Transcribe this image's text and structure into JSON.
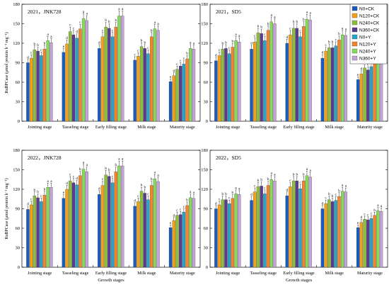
{
  "colors": [
    "#1a5bbf",
    "#f4a11a",
    "#8dbd3c",
    "#5a3c8c",
    "#2aa3c9",
    "#f4832a",
    "#86d95a",
    "#c4a3d8"
  ],
  "chart_data": [
    {
      "type": "bar",
      "title": "2021，JNK728",
      "ylabel": "RuBPCase (μmol protein h⁻¹ mg⁻¹)",
      "xlabel": "",
      "ylim": [
        0,
        180
      ],
      "yticks": [
        0,
        30,
        60,
        90,
        120,
        150,
        180
      ],
      "categories": [
        "Jointing stage",
        "Tasseling stage",
        "Early filling stage",
        "Milk stage",
        "Maturity stage"
      ],
      "series": [
        {
          "name": "N0+CK",
          "values": [
            90,
            106,
            112,
            94,
            61
          ],
          "labels": [
            "d",
            "e",
            "d",
            "c",
            "e"
          ]
        },
        {
          "name": "N120+CK",
          "values": [
            97,
            119,
            130,
            100,
            70
          ],
          "labels": [
            "c",
            "d",
            "c",
            "c",
            "d"
          ]
        },
        {
          "name": "N240+CK",
          "values": [
            110,
            138,
            145,
            115,
            80
          ],
          "labels": [
            "b",
            "c",
            "b",
            "b",
            "c"
          ]
        },
        {
          "name": "N360+CK",
          "values": [
            108,
            133,
            143,
            112,
            85
          ],
          "labels": [
            "b",
            "c",
            "b",
            "b",
            "c"
          ]
        },
        {
          "name": "N0+Y",
          "values": [
            101,
            128,
            130,
            104,
            88
          ],
          "labels": [
            "c",
            "d",
            "c",
            "c",
            "c"
          ]
        },
        {
          "name": "N120+Y",
          "values": [
            111,
            142,
            145,
            130,
            96
          ],
          "labels": [
            "b",
            "c",
            "b",
            "b",
            "b"
          ]
        },
        {
          "name": "N240+Y",
          "values": [
            124,
            158,
            162,
            142,
            112
          ],
          "labels": [
            "a",
            "a",
            "a",
            "a",
            "a"
          ]
        },
        {
          "name": "N360+Y",
          "values": [
            121,
            155,
            162,
            140,
            111
          ],
          "labels": [
            "a",
            "a",
            "a",
            "a",
            "a"
          ]
        }
      ]
    },
    {
      "type": "bar",
      "title": "2021，SD5",
      "ylabel": "",
      "xlabel": "",
      "ylim": [
        0,
        180
      ],
      "yticks": [
        0,
        30,
        60,
        90,
        120,
        150,
        180
      ],
      "categories": [
        "Jointing stage",
        "Tasseling stage",
        "Early filling stage",
        "Milk stage",
        "Maturity stage"
      ],
      "series": [
        {
          "name": "N0+CK",
          "values": [
            93,
            111,
            120,
            97,
            64
          ],
          "labels": [
            "d",
            "d",
            "d",
            "d",
            "e"
          ]
        },
        {
          "name": "N120+CK",
          "values": [
            101,
            122,
            133,
            108,
            73
          ],
          "labels": [
            "c",
            "c",
            "c",
            "c",
            "d"
          ]
        },
        {
          "name": "N240+CK",
          "values": [
            111,
            136,
            143,
            113,
            82
          ],
          "labels": [
            "b",
            "b",
            "b",
            "b",
            "c"
          ]
        },
        {
          "name": "N360+CK",
          "values": [
            112,
            135,
            143,
            113,
            79
          ],
          "labels": [
            "b",
            "b",
            "b",
            "b",
            "c"
          ]
        },
        {
          "name": "N0+Y",
          "values": [
            104,
            124,
            130,
            116,
            84
          ],
          "labels": [
            "c",
            "c",
            "c",
            "c",
            "c"
          ]
        },
        {
          "name": "N120+Y",
          "values": [
            114,
            140,
            146,
            125,
            93
          ],
          "labels": [
            "b",
            "b",
            "b",
            "b",
            "b"
          ]
        },
        {
          "name": "N240+Y",
          "values": [
            124,
            153,
            157,
            133,
            105
          ],
          "labels": [
            "a",
            "a",
            "a",
            "a",
            "a"
          ]
        },
        {
          "name": "N360+Y",
          "values": [
            122,
            150,
            156,
            132,
            104
          ],
          "labels": [
            "a",
            "a",
            "a",
            "a",
            "a"
          ]
        }
      ]
    },
    {
      "type": "bar",
      "title": "2022，JNK728",
      "ylabel": "RuBPCase (μmol protein h⁻¹ mg⁻¹)",
      "xlabel": "Growth stages",
      "ylim": [
        0,
        180
      ],
      "yticks": [
        0,
        30,
        60,
        90,
        120,
        150,
        180
      ],
      "categories": [
        "Jointing stage",
        "Tasseling stage",
        "Early filling stage",
        "Milk stage",
        "Maturity stage"
      ],
      "series": [
        {
          "name": "N0+CK",
          "values": [
            89,
            106,
            112,
            94,
            61
          ],
          "labels": [
            "d",
            "e",
            "d",
            "d",
            "e"
          ]
        },
        {
          "name": "N120+CK",
          "values": [
            96,
            120,
            126,
            101,
            72
          ],
          "labels": [
            "c",
            "d",
            "c",
            "c",
            "d"
          ]
        },
        {
          "name": "N240+CK",
          "values": [
            110,
            133,
            142,
            117,
            80
          ],
          "labels": [
            "b",
            "c",
            "b",
            "b",
            "c"
          ]
        },
        {
          "name": "N360+CK",
          "values": [
            107,
            130,
            140,
            114,
            81
          ],
          "labels": [
            "b",
            "c",
            "b",
            "b",
            "c"
          ]
        },
        {
          "name": "N0+Y",
          "values": [
            101,
            127,
            130,
            104,
            85
          ],
          "labels": [
            "c",
            "d",
            "c",
            "c",
            "c"
          ]
        },
        {
          "name": "N120+Y",
          "values": [
            111,
            141,
            147,
            126,
            95
          ],
          "labels": [
            "b",
            "b",
            "b",
            "b",
            "b"
          ]
        },
        {
          "name": "N240+Y",
          "values": [
            123,
            151,
            156,
            136,
            107
          ],
          "labels": [
            "a",
            "a",
            "a",
            "a",
            "a"
          ]
        },
        {
          "name": "N360+Y",
          "values": [
            123,
            147,
            156,
            132,
            106
          ],
          "labels": [
            "a",
            "a",
            "a",
            "a",
            "a"
          ]
        }
      ]
    },
    {
      "type": "bar",
      "title": "2022，SD5",
      "ylabel": "",
      "xlabel": "Growth stages",
      "ylim": [
        0,
        180
      ],
      "yticks": [
        0,
        30,
        60,
        90,
        120,
        150,
        180
      ],
      "categories": [
        "Jointing stage",
        "Tasseling stage",
        "Early filling stage",
        "Milk stage",
        "Maturity stage"
      ],
      "series": [
        {
          "name": "N0+CK",
          "values": [
            90,
            103,
            110,
            90,
            61
          ],
          "labels": [
            "d",
            "d",
            "d",
            "d",
            "e"
          ]
        },
        {
          "name": "N120+CK",
          "values": [
            96,
            116,
            124,
            98,
            69
          ],
          "labels": [
            "c",
            "c",
            "c",
            "c",
            "d"
          ]
        },
        {
          "name": "N240+CK",
          "values": [
            104,
            124,
            133,
            104,
            74
          ],
          "labels": [
            "b",
            "b",
            "b",
            "b",
            "c"
          ]
        },
        {
          "name": "N360+CK",
          "values": [
            104,
            125,
            133,
            101,
            73
          ],
          "labels": [
            "b",
            "b",
            "b",
            "b",
            "c"
          ]
        },
        {
          "name": "N0+Y",
          "values": [
            98,
            113,
            121,
            103,
            75
          ],
          "labels": [
            "c",
            "c",
            "c",
            "c",
            "c"
          ]
        },
        {
          "name": "N120+Y",
          "values": [
            106,
            126,
            133,
            109,
            80
          ],
          "labels": [
            "b",
            "b",
            "b",
            "b",
            "b"
          ]
        },
        {
          "name": "N240+Y",
          "values": [
            113,
            135,
            141,
            117,
            87
          ],
          "labels": [
            "a",
            "a",
            "a",
            "a",
            "a"
          ]
        },
        {
          "name": "N360+Y",
          "values": [
            112,
            133,
            139,
            116,
            86
          ],
          "labels": [
            "a",
            "a",
            "a",
            "a",
            "a"
          ]
        }
      ]
    }
  ]
}
